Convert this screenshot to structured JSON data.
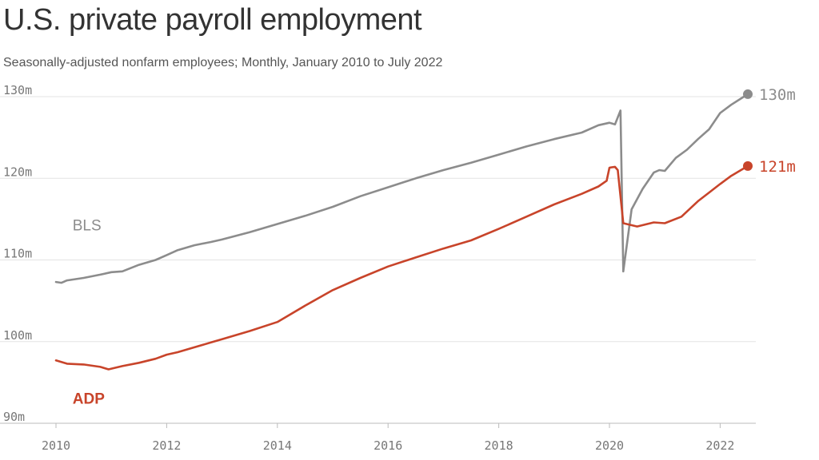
{
  "header": {
    "title": "U.S. private payroll employment",
    "subtitle": "Seasonally-adjusted nonfarm employees; Monthly, January 2010 to July 2022"
  },
  "colors": {
    "bls": "#8c8c8c",
    "adp": "#c8442a",
    "grid": "#e3e3e3",
    "axis": "#bbbbbb"
  },
  "chart_data": {
    "type": "line",
    "title": "U.S. private payroll employment",
    "subtitle": "Seasonally-adjusted nonfarm employees; Monthly, January 2010 to July 2022",
    "xlim": [
      2010,
      2022.5
    ],
    "ylim": [
      90,
      130
    ],
    "x_ticks": [
      2010,
      2012,
      2014,
      2016,
      2018,
      2020,
      2022
    ],
    "x_tick_labels": [
      "2010",
      "2012",
      "2014",
      "2016",
      "2018",
      "2020",
      "2022"
    ],
    "y_ticks": [
      90,
      100,
      110,
      120,
      130
    ],
    "y_tick_labels": [
      "90m",
      "100m",
      "110m",
      "120m",
      "130m"
    ],
    "grid": true,
    "series": [
      {
        "name": "BLS",
        "color": "#8c8c8c",
        "end_label": "130m",
        "points": [
          [
            2010.0,
            107.3
          ],
          [
            2010.1,
            107.2
          ],
          [
            2010.2,
            107.5
          ],
          [
            2010.5,
            107.8
          ],
          [
            2010.8,
            108.2
          ],
          [
            2011.0,
            108.5
          ],
          [
            2011.2,
            108.6
          ],
          [
            2011.5,
            109.4
          ],
          [
            2011.8,
            110.0
          ],
          [
            2012.0,
            110.6
          ],
          [
            2012.2,
            111.2
          ],
          [
            2012.5,
            111.8
          ],
          [
            2012.8,
            112.2
          ],
          [
            2013.0,
            112.5
          ],
          [
            2013.5,
            113.4
          ],
          [
            2014.0,
            114.4
          ],
          [
            2014.5,
            115.4
          ],
          [
            2015.0,
            116.5
          ],
          [
            2015.5,
            117.8
          ],
          [
            2016.0,
            118.9
          ],
          [
            2016.5,
            120.0
          ],
          [
            2017.0,
            121.0
          ],
          [
            2017.5,
            121.9
          ],
          [
            2018.0,
            122.9
          ],
          [
            2018.5,
            123.9
          ],
          [
            2019.0,
            124.8
          ],
          [
            2019.5,
            125.6
          ],
          [
            2019.8,
            126.5
          ],
          [
            2020.0,
            126.8
          ],
          [
            2020.1,
            126.6
          ],
          [
            2020.2,
            128.3
          ],
          [
            2020.25,
            108.6
          ],
          [
            2020.4,
            116.2
          ],
          [
            2020.6,
            118.7
          ],
          [
            2020.8,
            120.7
          ],
          [
            2020.9,
            121.0
          ],
          [
            2021.0,
            120.9
          ],
          [
            2021.2,
            122.5
          ],
          [
            2021.4,
            123.5
          ],
          [
            2021.6,
            124.8
          ],
          [
            2021.8,
            126.0
          ],
          [
            2022.0,
            128.0
          ],
          [
            2022.2,
            129.0
          ],
          [
            2022.5,
            130.3
          ]
        ]
      },
      {
        "name": "ADP",
        "color": "#c8442a",
        "end_label": "121m",
        "points": [
          [
            2010.0,
            97.7
          ],
          [
            2010.2,
            97.3
          ],
          [
            2010.5,
            97.2
          ],
          [
            2010.8,
            96.9
          ],
          [
            2010.95,
            96.6
          ],
          [
            2011.2,
            97.0
          ],
          [
            2011.5,
            97.4
          ],
          [
            2011.8,
            97.9
          ],
          [
            2012.0,
            98.4
          ],
          [
            2012.2,
            98.7
          ],
          [
            2012.5,
            99.3
          ],
          [
            2012.8,
            99.9
          ],
          [
            2013.0,
            100.3
          ],
          [
            2013.5,
            101.3
          ],
          [
            2014.0,
            102.4
          ],
          [
            2014.5,
            104.4
          ],
          [
            2015.0,
            106.3
          ],
          [
            2015.5,
            107.8
          ],
          [
            2016.0,
            109.2
          ],
          [
            2016.5,
            110.3
          ],
          [
            2017.0,
            111.4
          ],
          [
            2017.5,
            112.4
          ],
          [
            2018.0,
            113.8
          ],
          [
            2018.5,
            115.3
          ],
          [
            2019.0,
            116.8
          ],
          [
            2019.5,
            118.1
          ],
          [
            2019.8,
            119.0
          ],
          [
            2019.95,
            119.7
          ],
          [
            2020.0,
            121.3
          ],
          [
            2020.1,
            121.4
          ],
          [
            2020.15,
            121.0
          ],
          [
            2020.25,
            114.5
          ],
          [
            2020.5,
            114.1
          ],
          [
            2020.8,
            114.6
          ],
          [
            2021.0,
            114.5
          ],
          [
            2021.3,
            115.3
          ],
          [
            2021.6,
            117.2
          ],
          [
            2022.0,
            119.3
          ],
          [
            2022.2,
            120.3
          ],
          [
            2022.5,
            121.5
          ]
        ]
      }
    ]
  }
}
